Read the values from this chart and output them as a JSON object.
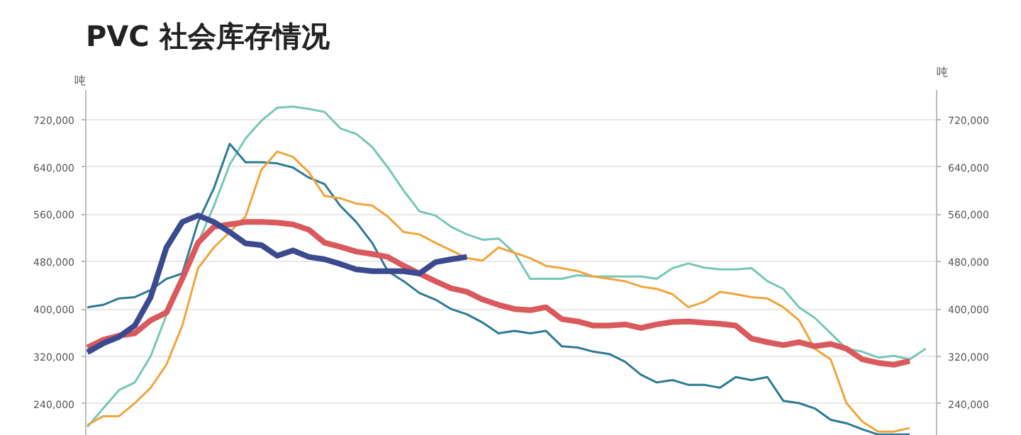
{
  "chart_data": {
    "type": "line",
    "title": "PVC 社会库存情况",
    "ylabel": "吨",
    "y2label": "吨",
    "categories": [
      null,
      null,
      null,
      null,
      null,
      null,
      null,
      null,
      null,
      null,
      null,
      null,
      null,
      null,
      null,
      null,
      null,
      null,
      null,
      null,
      null,
      null,
      null,
      null,
      null,
      null,
      null,
      null,
      null,
      null,
      null,
      null,
      null,
      null,
      null,
      null,
      null,
      null,
      null,
      null,
      null,
      null,
      null,
      null,
      null,
      null,
      null,
      null,
      null,
      null,
      null,
      null,
      null,
      null
    ],
    "ylim": [
      186000,
      770000
    ],
    "yticks": [
      {
        "value": 240000,
        "label": "240,000"
      },
      {
        "value": 320000,
        "label": "320,000"
      },
      {
        "value": 400000,
        "label": "400,000"
      },
      {
        "value": 480000,
        "label": "480,000"
      },
      {
        "value": 560000,
        "label": "560,000"
      },
      {
        "value": 640000,
        "label": "640,000"
      },
      {
        "value": 720000,
        "label": "720,000"
      }
    ],
    "y2lim": [
      186000,
      770000
    ],
    "y2ticks": [
      {
        "value": 240000,
        "label": "240,000"
      },
      {
        "value": 320000,
        "label": "320,000"
      },
      {
        "value": 400000,
        "label": "400,000"
      },
      {
        "value": 480000,
        "label": "480,000"
      },
      {
        "value": 560000,
        "label": "560,000"
      },
      {
        "value": 640000,
        "label": "640,000"
      },
      {
        "value": 720000,
        "label": "720,000"
      }
    ],
    "tick_labels": "y",
    "grid": "y",
    "marker": "none",
    "line_style": "solid",
    "series": [
      {
        "color": "#76c7b7",
        "values": [
          201000,
          232000,
          263000,
          276000,
          320000,
          390000,
          451000,
          512000,
          574000,
          644000,
          688000,
          718000,
          740000,
          742000,
          738000,
          733000,
          705000,
          696000,
          674000,
          639000,
          600000,
          565000,
          558000,
          539000,
          526000,
          517000,
          519000,
          495000,
          451000,
          451000,
          451000,
          457000,
          455000,
          455000,
          455000,
          455000,
          451000,
          469000,
          477000,
          470000,
          467000,
          467000,
          469000,
          447000,
          434000,
          403000,
          385000,
          359000,
          333000,
          328000,
          318000,
          321000,
          315000,
          333000
        ]
      },
      {
        "color": "#2d7a95",
        "values": [
          403000,
          407000,
          418000,
          420000,
          432000,
          451000,
          460000,
          547000,
          604000,
          679000,
          648000,
          648000,
          646000,
          639000,
          622000,
          611000,
          574000,
          547000,
          512000,
          464000,
          447000,
          427000,
          416000,
          400000,
          391000,
          377000,
          359000,
          363000,
          359000,
          363000,
          337000,
          335000,
          328000,
          324000,
          311000,
          289000,
          276000,
          280000,
          272000,
          272000,
          267000,
          285000,
          280000,
          285000,
          245000,
          241000,
          232000,
          213000,
          207000,
          197000,
          188000,
          188000,
          188000,
          null
        ]
      },
      {
        "color": "#f0a53c",
        "values": [
          204000,
          219000,
          219000,
          241000,
          267000,
          306000,
          372000,
          469000,
          504000,
          530000,
          556000,
          635000,
          666000,
          657000,
          631000,
          591000,
          587000,
          578000,
          575000,
          556000,
          530000,
          526000,
          512000,
          499000,
          486000,
          482000,
          504000,
          495000,
          486000,
          473000,
          469000,
          464000,
          455000,
          451000,
          447000,
          438000,
          434000,
          425000,
          403000,
          412000,
          429000,
          425000,
          420000,
          418000,
          403000,
          381000,
          333000,
          315000,
          241000,
          210000,
          193000,
          193000,
          199000,
          null
        ]
      },
      {
        "color": "#d9595c",
        "values": [
          335000,
          348000,
          355000,
          359000,
          381000,
          394000,
          451000,
          512000,
          539000,
          543000,
          547000,
          547000,
          546000,
          543000,
          534000,
          512000,
          505000,
          497000,
          493000,
          488000,
          473000,
          460000,
          447000,
          435000,
          429000,
          416000,
          407000,
          400000,
          398000,
          403000,
          383000,
          379000,
          372000,
          372000,
          374000,
          368000,
          374000,
          378000,
          379000,
          377000,
          375000,
          372000,
          350000,
          344000,
          339000,
          344000,
          337000,
          341000,
          333000,
          315000,
          309000,
          306000,
          312000,
          null
        ]
      },
      {
        "color": "#3b4a8f",
        "values": [
          327000,
          342000,
          353000,
          372000,
          420000,
          504000,
          547000,
          558000,
          547000,
          530000,
          511000,
          508000,
          490000,
          499000,
          488000,
          484000,
          476000,
          467000,
          464000,
          464000,
          464000,
          460000,
          479000,
          484000,
          488000,
          null,
          null,
          null,
          null,
          null,
          null,
          null,
          null,
          null,
          null,
          null,
          null,
          null,
          null,
          null,
          null,
          null,
          null,
          null,
          null,
          null,
          null,
          null,
          null,
          null,
          null,
          null,
          null,
          null
        ]
      }
    ]
  }
}
